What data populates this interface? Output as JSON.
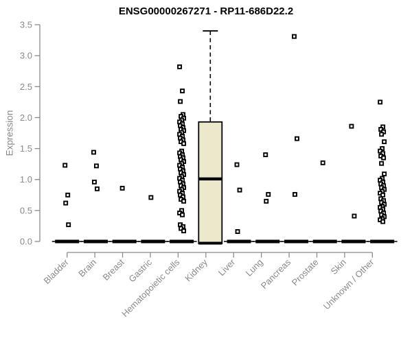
{
  "chart_data": {
    "type": "boxplot",
    "title": "ENSG00000267271 - RP11-686D22.2",
    "ylabel": "Expression",
    "xlabel": "",
    "ylim": [
      0,
      3.5
    ],
    "yticks": [
      "0.0",
      "0.5",
      "1.0",
      "1.5",
      "2.0",
      "2.5",
      "3.0",
      "3.5"
    ],
    "grid": false,
    "legend": "none",
    "colors": {
      "box_fill": "#ECE8CC",
      "box_border": "#000000",
      "axis": "#8a8a8a",
      "title": "#000000",
      "point": "#000000"
    },
    "categories": [
      "Bladder",
      "Brain",
      "Breast",
      "Gastric",
      "Hematopoietic cells",
      "Kidney",
      "Liver",
      "Lung",
      "Pancreas",
      "Prostate",
      "Skin",
      "Unknown / Other"
    ],
    "boxes": [
      {
        "category": "Bladder",
        "q1": 0,
        "median": 0,
        "q3": 0,
        "whisker_low": 0,
        "whisker_high": 0,
        "outliers": [
          1.23,
          0.75,
          0.62,
          0.27
        ]
      },
      {
        "category": "Brain",
        "q1": 0,
        "median": 0,
        "q3": 0,
        "whisker_low": 0,
        "whisker_high": 0,
        "outliers": [
          1.44,
          1.22,
          0.96,
          0.85
        ]
      },
      {
        "category": "Breast",
        "q1": 0,
        "median": 0,
        "q3": 0,
        "whisker_low": 0,
        "whisker_high": 0,
        "outliers": [
          0.86
        ]
      },
      {
        "category": "Gastric",
        "q1": 0,
        "median": 0,
        "q3": 0,
        "whisker_low": 0,
        "whisker_high": 0,
        "outliers": [
          0.71
        ]
      },
      {
        "category": "Hematopoietic cells",
        "q1": 0,
        "median": 0,
        "q3": 0,
        "whisker_low": 0,
        "whisker_high": 0,
        "outliers": [
          2.82,
          2.43,
          2.26,
          2.05,
          2.02,
          1.99,
          1.96,
          1.93,
          1.9,
          1.87,
          1.84,
          1.81,
          1.79,
          1.76,
          1.73,
          1.7,
          1.67,
          1.64,
          1.61,
          1.58,
          1.46,
          1.43,
          1.4,
          1.37,
          1.35,
          1.32,
          1.29,
          1.26,
          1.23,
          1.2,
          1.17,
          1.14,
          1.11,
          1.08,
          1.05,
          1.02,
          0.99,
          0.96,
          0.93,
          0.9,
          0.87,
          0.84,
          0.81,
          0.78,
          0.75,
          0.72,
          0.68,
          0.65,
          0.5,
          0.46,
          0.43,
          0.27,
          0.24,
          0.21,
          0.17
        ]
      },
      {
        "category": "Kidney",
        "q1": 0,
        "median": 1.01,
        "q3": 1.93,
        "whisker_low": 0,
        "whisker_high": 3.4,
        "outliers": []
      },
      {
        "category": "Liver",
        "q1": 0,
        "median": 0,
        "q3": 0,
        "whisker_low": 0,
        "whisker_high": 0,
        "outliers": [
          1.24,
          0.83,
          0.16
        ]
      },
      {
        "category": "Lung",
        "q1": 0,
        "median": 0,
        "q3": 0,
        "whisker_low": 0,
        "whisker_high": 0,
        "outliers": [
          1.4,
          0.76,
          0.65
        ]
      },
      {
        "category": "Pancreas",
        "q1": 0,
        "median": 0,
        "q3": 0,
        "whisker_low": 0,
        "whisker_high": 0,
        "outliers": [
          3.31,
          1.66,
          0.76
        ]
      },
      {
        "category": "Prostate",
        "q1": 0,
        "median": 0,
        "q3": 0,
        "whisker_low": 0,
        "whisker_high": 0,
        "outliers": [
          1.27
        ]
      },
      {
        "category": "Skin",
        "q1": 0,
        "median": 0,
        "q3": 0,
        "whisker_low": 0,
        "whisker_high": 0,
        "outliers": [
          1.86,
          0.41
        ]
      },
      {
        "category": "Unknown / Other",
        "q1": 0,
        "median": 0,
        "q3": 0,
        "whisker_low": 0,
        "whisker_high": 0,
        "outliers": [
          2.25,
          1.85,
          1.81,
          1.77,
          1.73,
          1.61,
          1.5,
          1.46,
          1.42,
          1.38,
          1.35,
          1.26,
          1.09,
          1.02,
          0.99,
          0.96,
          0.93,
          0.9,
          0.87,
          0.84,
          0.81,
          0.78,
          0.75,
          0.69,
          0.66,
          0.63,
          0.6,
          0.57,
          0.55,
          0.52,
          0.49,
          0.46,
          0.43,
          0.4,
          0.37,
          0.35,
          0.32
        ]
      }
    ]
  }
}
